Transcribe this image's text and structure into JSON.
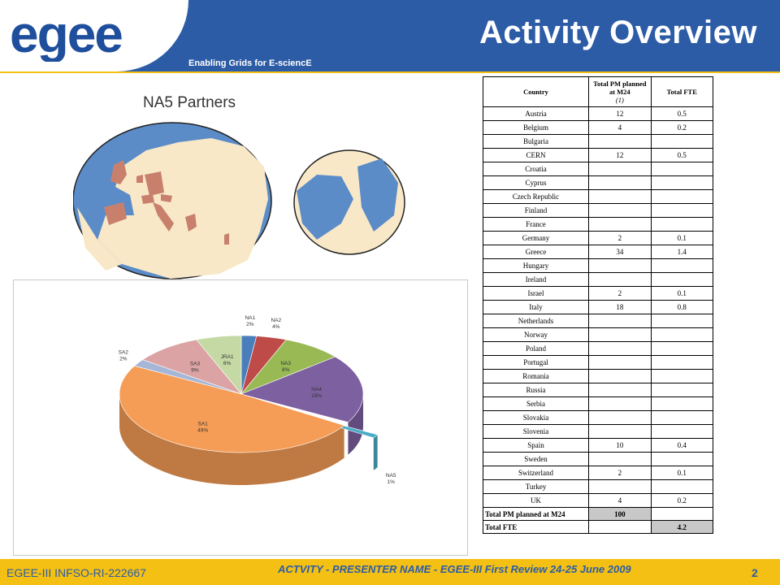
{
  "header": {
    "logo_text": "egee",
    "tagline": "Enabling Grids for E-sciencE",
    "title": "Activity Overview"
  },
  "map": {
    "title": "NA5 Partners"
  },
  "pie_chart": {
    "slices": [
      {
        "label": "NA1",
        "pct": "2%",
        "value": 2,
        "color": "#4a7ebb"
      },
      {
        "label": "NA2",
        "pct": "4%",
        "value": 4,
        "color": "#be4b48"
      },
      {
        "label": "NA3",
        "pct": "8%",
        "value": 8,
        "color": "#98b954"
      },
      {
        "label": "NA4",
        "pct": "19%",
        "value": 19,
        "color": "#7d60a0"
      },
      {
        "label": "NA5",
        "pct": "1%",
        "value": 1,
        "color": "#4bacc6"
      },
      {
        "label": "SA1",
        "pct": "49%",
        "value": 49,
        "color": "#f59d56"
      },
      {
        "label": "SA2",
        "pct": "2%",
        "value": 2,
        "color": "#a5b6d6"
      },
      {
        "label": "SA3",
        "pct": "9%",
        "value": 9,
        "color": "#dba3a3"
      },
      {
        "label": "JRA1",
        "pct": "6%",
        "value": 6,
        "color": "#c5d9a5"
      }
    ]
  },
  "table": {
    "headers": {
      "country": "Country",
      "pm": "Total PM planned at M24",
      "pm_note": "(1)",
      "fte": "Total FTE"
    },
    "rows": [
      {
        "country": "Austria",
        "pm": "12",
        "fte": "0.5"
      },
      {
        "country": "Belgium",
        "pm": "4",
        "fte": "0.2"
      },
      {
        "country": "Bulgaria",
        "pm": "",
        "fte": ""
      },
      {
        "country": "CERN",
        "pm": "12",
        "fte": "0.5"
      },
      {
        "country": "Croatia",
        "pm": "",
        "fte": ""
      },
      {
        "country": "Cyprus",
        "pm": "",
        "fte": ""
      },
      {
        "country": "Czech Republic",
        "pm": "",
        "fte": ""
      },
      {
        "country": "Finland",
        "pm": "",
        "fte": ""
      },
      {
        "country": "France",
        "pm": "",
        "fte": ""
      },
      {
        "country": "Germany",
        "pm": "2",
        "fte": "0.1"
      },
      {
        "country": "Greece",
        "pm": "34",
        "fte": "1.4"
      },
      {
        "country": "Hungary",
        "pm": "",
        "fte": ""
      },
      {
        "country": "Ireland",
        "pm": "",
        "fte": ""
      },
      {
        "country": "Israel",
        "pm": "2",
        "fte": "0.1"
      },
      {
        "country": "Italy",
        "pm": "18",
        "fte": "0.8"
      },
      {
        "country": "Netherlands",
        "pm": "",
        "fte": ""
      },
      {
        "country": "Norway",
        "pm": "",
        "fte": ""
      },
      {
        "country": "Poland",
        "pm": "",
        "fte": ""
      },
      {
        "country": "Portugal",
        "pm": "",
        "fte": ""
      },
      {
        "country": "Romania",
        "pm": "",
        "fte": ""
      },
      {
        "country": "Russia",
        "pm": "",
        "fte": ""
      },
      {
        "country": "Serbia",
        "pm": "",
        "fte": ""
      },
      {
        "country": "Slovakia",
        "pm": "",
        "fte": ""
      },
      {
        "country": "Slovenia",
        "pm": "",
        "fte": ""
      },
      {
        "country": "Spain",
        "pm": "10",
        "fte": "0.4"
      },
      {
        "country": "Sweden",
        "pm": "",
        "fte": ""
      },
      {
        "country": "Switzerland",
        "pm": "2",
        "fte": "0.1"
      },
      {
        "country": "Turkey",
        "pm": "",
        "fte": ""
      },
      {
        "country": "UK",
        "pm": "4",
        "fte": "0.2"
      }
    ],
    "total_pm_label": "Total PM planned at M24",
    "total_pm_value": "100",
    "total_fte_label": "Total FTE",
    "total_fte_value": "4.2"
  },
  "footer": {
    "left": "EGEE-III INFSO-RI-222667",
    "middle": "ACTVITY - PRESENTER NAME - EGEE-III First Review 24-25 June 2009",
    "page": "2"
  },
  "colors": {
    "header_blue": "#2d5ca6",
    "footer_yellow": "#f3c013",
    "sea_blue": "#5b8cc8",
    "land": "#f8e8c8",
    "partner_land": "#c8806c"
  }
}
